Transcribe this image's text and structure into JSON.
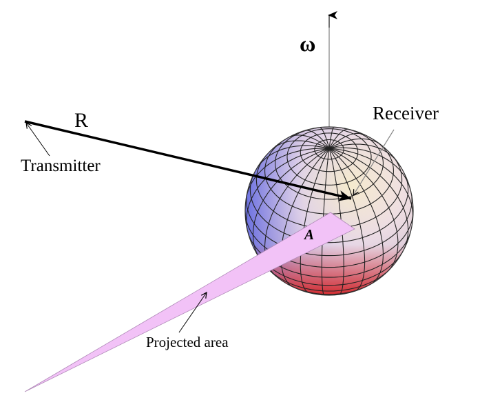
{
  "labels": {
    "omega": "ω",
    "distance": "R",
    "transmitter": "Transmitter",
    "receiver": "Receiver",
    "area": "A",
    "projected_area": "Projected area"
  },
  "colors": {
    "stroke": "#000000",
    "axis": "#808080",
    "beam_fill": "#f2c2f7",
    "sphere_top": "#ffffff",
    "sphere_left": "#5060e8",
    "sphere_right": "#fff4cc",
    "sphere_bottom": "#e23030",
    "grid_line": "#222222"
  }
}
